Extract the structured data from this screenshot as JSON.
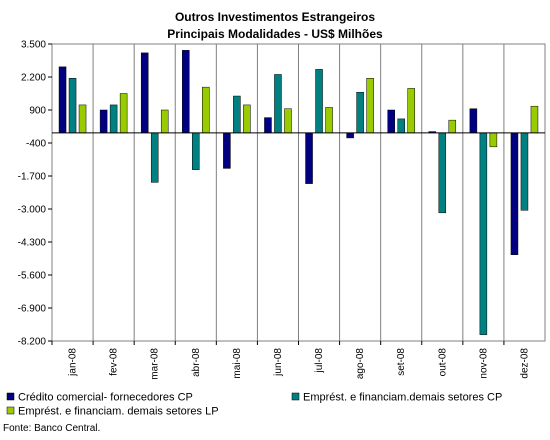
{
  "chart_data": {
    "type": "bar",
    "title": "Outros Investimentos Estrangeiros",
    "subtitle": "Principais Modalidades - US$ Milhões",
    "categories": [
      "jan-08",
      "fev-08",
      "mar-08",
      "abr-08",
      "mai-08",
      "jun-08",
      "jul-08",
      "ago-08",
      "set-08",
      "out-08",
      "nov-08",
      "dez-08"
    ],
    "series": [
      {
        "name": "Crédito comercial- fornecedores CP",
        "color": "#000080",
        "values": [
          2600,
          900,
          3150,
          3250,
          -1400,
          600,
          -2000,
          -200,
          900,
          50,
          950,
          -4800
        ]
      },
      {
        "name": "Emprést. e financiam.demais setores CP",
        "color": "#008080",
        "values": [
          2150,
          1100,
          -1950,
          -1450,
          1450,
          2300,
          2500,
          1600,
          550,
          -3150,
          -7950,
          -3050
        ]
      },
      {
        "name": "Emprést. e financiam. demais setores LP",
        "color": "#99CC00",
        "values": [
          1100,
          1550,
          900,
          1800,
          1100,
          950,
          1000,
          2150,
          1750,
          500,
          -550,
          1050
        ]
      }
    ],
    "yticks": [
      3500,
      2200,
      900,
      -400,
      -1700,
      -3000,
      -4300,
      -5600,
      -6900,
      -8200
    ],
    "ytick_labels": [
      "3.500",
      "2.200",
      "900",
      "-400",
      "-1.700",
      "-3.000",
      "-4.300",
      "-5.600",
      "-6.900",
      "-8.200"
    ],
    "ylim": [
      -8200,
      3500
    ],
    "grid": "vertical separators between categories",
    "legend_position": "bottom"
  },
  "source": "Fonte: Banco Central."
}
